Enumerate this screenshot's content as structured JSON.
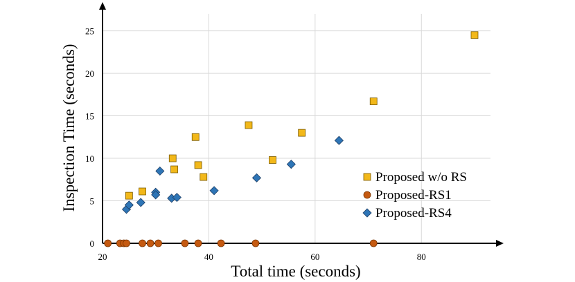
{
  "chart_data": {
    "type": "scatter",
    "title": "",
    "xlabel": "Total time (seconds)",
    "ylabel": "Inspection Time (seconds)",
    "xlim": [
      20,
      93
    ],
    "ylim": [
      0,
      27
    ],
    "xticks": [
      20,
      40,
      60,
      80
    ],
    "yticks": [
      0,
      5,
      10,
      15,
      20,
      25
    ],
    "grid": "vertical and horizontal",
    "legend_position": "right",
    "series": [
      {
        "name": "Proposed w/o RS",
        "marker": "square",
        "color": "#F2B81A",
        "edge": "#7A5A00",
        "points": [
          [
            25.0,
            5.6
          ],
          [
            27.5,
            6.1
          ],
          [
            33.2,
            10.0
          ],
          [
            33.5,
            8.7
          ],
          [
            37.5,
            12.5
          ],
          [
            38.0,
            9.2
          ],
          [
            39.0,
            7.8
          ],
          [
            47.5,
            13.9
          ],
          [
            52.0,
            9.8
          ],
          [
            57.5,
            13.0
          ],
          [
            71.0,
            16.7
          ],
          [
            90.0,
            24.5
          ]
        ]
      },
      {
        "name": "Proposed-RS1",
        "marker": "circle",
        "color": "#C55A11",
        "edge": "#7A3500",
        "points": [
          [
            21.0,
            0
          ],
          [
            23.3,
            0
          ],
          [
            24.0,
            0
          ],
          [
            24.5,
            0
          ],
          [
            27.5,
            0
          ],
          [
            29.0,
            0
          ],
          [
            30.5,
            0
          ],
          [
            35.5,
            0
          ],
          [
            38.0,
            0
          ],
          [
            42.3,
            0
          ],
          [
            48.8,
            0
          ],
          [
            71.0,
            0
          ]
        ]
      },
      {
        "name": "Proposed-RS4",
        "marker": "diamond",
        "color": "#2E75B6",
        "edge": "#1F3F66",
        "points": [
          [
            24.5,
            4.0
          ],
          [
            25.0,
            4.5
          ],
          [
            27.2,
            4.8
          ],
          [
            30.0,
            6.0
          ],
          [
            30.0,
            5.7
          ],
          [
            30.8,
            8.5
          ],
          [
            33.0,
            5.3
          ],
          [
            34.0,
            5.4
          ],
          [
            41.0,
            6.2
          ],
          [
            49.0,
            7.7
          ],
          [
            55.5,
            9.3
          ],
          [
            64.5,
            12.1
          ]
        ]
      }
    ]
  }
}
